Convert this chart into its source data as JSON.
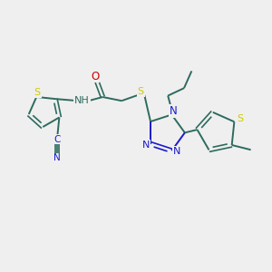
{
  "background_color": "#efefef",
  "bond_color": "#2d6b5e",
  "atom_colors": {
    "S": "#cccc00",
    "N": "#1a1acc",
    "O": "#cc0000",
    "C": "#2d6b5e",
    "H": "#2d6b5e"
  },
  "figsize": [
    3.0,
    3.0
  ],
  "dpi": 100
}
